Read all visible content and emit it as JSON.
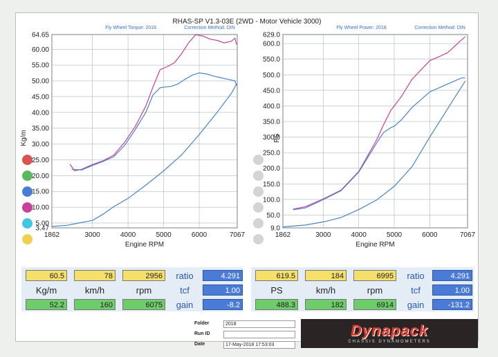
{
  "page": {
    "title": "RHAS-SP V1.3-03E  (2WD - Motor Vehicle 3000)"
  },
  "chart_data": [
    {
      "type": "line",
      "header": "Fly Wheel Torque: 2018",
      "correction": "Correction Method: DIN",
      "xlabel": "Engine RPM",
      "ylabel": "Kg/m",
      "xlim": [
        1862,
        7067
      ],
      "ylim": [
        3.47,
        64.65
      ],
      "xticks": [
        "1862",
        "3000",
        "4000",
        "5000",
        "6000",
        "7067"
      ],
      "xtick_vals": [
        1862,
        3000,
        4000,
        5000,
        6000,
        7067
      ],
      "yticks": [
        "64.65",
        "60.00",
        "55.00",
        "50.00",
        "45.00",
        "40.00",
        "35.00",
        "30.00",
        "25.00",
        "20.00",
        "15.00",
        "10.00",
        "5.00",
        "3.47"
      ],
      "ytick_vals": [
        64.65,
        60,
        55,
        50,
        45,
        40,
        35,
        30,
        25,
        20,
        15,
        10,
        5,
        3.47
      ],
      "grid": true,
      "series": [
        {
          "color": "#c8409a",
          "x": [
            2370,
            2500,
            2700,
            3000,
            3300,
            3600,
            3900,
            4200,
            4500,
            4700,
            4900,
            5100,
            5300,
            5500,
            5700,
            5900,
            6100,
            6300,
            6500,
            6700,
            6900,
            7000,
            7050
          ],
          "y": [
            23.6,
            21.5,
            22,
            23.5,
            24.7,
            26.5,
            30.5,
            35.5,
            42,
            48,
            53.5,
            54.5,
            55.7,
            58.5,
            62,
            64.6,
            64.2,
            63.2,
            62.8,
            62,
            62.5,
            63.5,
            61.5
          ]
        },
        {
          "color": "#4a82c8",
          "x": [
            2420,
            2700,
            3000,
            3300,
            3600,
            3900,
            4200,
            4500,
            4700,
            4900,
            5000,
            5200,
            5400,
            5600,
            5800,
            6000,
            6200,
            6400,
            6600,
            6800,
            7000,
            7050
          ],
          "y": [
            22,
            21.8,
            23.2,
            24.5,
            26,
            29.5,
            34.5,
            40,
            45.5,
            47.8,
            48,
            48.2,
            49,
            50.5,
            51.8,
            52.5,
            52.2,
            51.5,
            51,
            50.5,
            50,
            48.5
          ]
        },
        {
          "color": "#4a82c8",
          "x": [
            1862,
            2300,
            2700,
            3000,
            3300,
            3600,
            4000,
            4500,
            5000,
            5500,
            6000,
            6500,
            6900,
            7050
          ],
          "y": [
            3.9,
            4.3,
            5.2,
            5.8,
            7.8,
            10.2,
            12.8,
            17,
            21.5,
            26.5,
            33,
            40,
            46,
            49
          ]
        }
      ]
    },
    {
      "type": "line",
      "header": "Fly Wheel Power: 2018",
      "correction": "Correction Method: DIN",
      "xlabel": "Engine RPM",
      "ylabel": "PS",
      "xlim": [
        1862,
        7067
      ],
      "ylim": [
        9.0,
        629.0
      ],
      "xticks": [
        "1862",
        "3000",
        "4000",
        "5000",
        "6000",
        "7067"
      ],
      "xtick_vals": [
        1862,
        3000,
        4000,
        5000,
        6000,
        7067
      ],
      "yticks": [
        "629.0",
        "600.0",
        "550.0",
        "500.0",
        "450.0",
        "400.0",
        "350.0",
        "300.0",
        "250.0",
        "200.0",
        "150.0",
        "100.0",
        "50.0",
        "9.0"
      ],
      "ytick_vals": [
        629,
        600,
        550,
        500,
        450,
        400,
        350,
        300,
        250,
        200,
        150,
        100,
        50,
        9
      ],
      "grid": true,
      "series": [
        {
          "color": "#c8409a",
          "x": [
            2150,
            2500,
            3000,
            3500,
            4000,
            4500,
            4700,
            4900,
            5000,
            5200,
            5500,
            6000,
            6500,
            6900,
            7000
          ],
          "y": [
            69,
            77,
            102,
            130,
            190,
            290,
            340,
            385,
            400,
            430,
            485,
            545,
            570,
            612,
            622
          ]
        },
        {
          "color": "#4a82c8",
          "x": [
            2150,
            2500,
            3000,
            3500,
            4000,
            4500,
            4700,
            4900,
            5000,
            5200,
            5500,
            6000,
            6500,
            6900,
            7000
          ],
          "y": [
            67,
            73,
            100,
            128,
            188,
            280,
            315,
            330,
            335,
            355,
            395,
            445,
            470,
            490,
            490
          ]
        },
        {
          "color": "#4a82c8",
          "x": [
            1862,
            2500,
            3000,
            3500,
            4000,
            4500,
            5000,
            5500,
            6000,
            6500,
            7000
          ],
          "y": [
            12,
            18,
            28,
            42,
            68,
            98,
            142,
            205,
            300,
            390,
            480
          ]
        }
      ]
    }
  ],
  "left": {
    "row1": [
      "60.5",
      "78",
      "2956"
    ],
    "units": [
      "Kg/m",
      "km/h",
      "rpm"
    ],
    "row3": [
      "52.2",
      "160",
      "6075"
    ],
    "side_labels": [
      "ratio",
      "tcf",
      "gain"
    ],
    "side_values": [
      "4.291",
      "1.00",
      "-8.2"
    ]
  },
  "right": {
    "row1": [
      "619.5",
      "184",
      "6995"
    ],
    "units": [
      "PS",
      "km/h",
      "rpm"
    ],
    "row3": [
      "488.3",
      "182",
      "6914"
    ],
    "side_labels": [
      "ratio",
      "tcf",
      "gain"
    ],
    "side_values": [
      "4.291",
      "1.00",
      "-131.2"
    ]
  },
  "footer": {
    "folder_label": "Folder",
    "folder_value": "2018",
    "runid_label": "Run ID",
    "runid_value": "",
    "date_label": "Date",
    "date_value": "17-May-2018  17:53:03"
  },
  "logo": {
    "main": "Dynapack",
    "sub": "CHASSIS DYNAMOMETERS"
  },
  "colors": {
    "torque": "#c8409a",
    "curve": "#4a82c8",
    "yellow": "#f6df6a",
    "green": "#6fcc6a",
    "blue": "#4a7bd6"
  },
  "channel_buttons": {
    "colors": [
      "#d9534f",
      "#5cb85c",
      "#4a7bd6",
      "#c8409a",
      "#3fc8e0",
      "#f0d050"
    ]
  }
}
